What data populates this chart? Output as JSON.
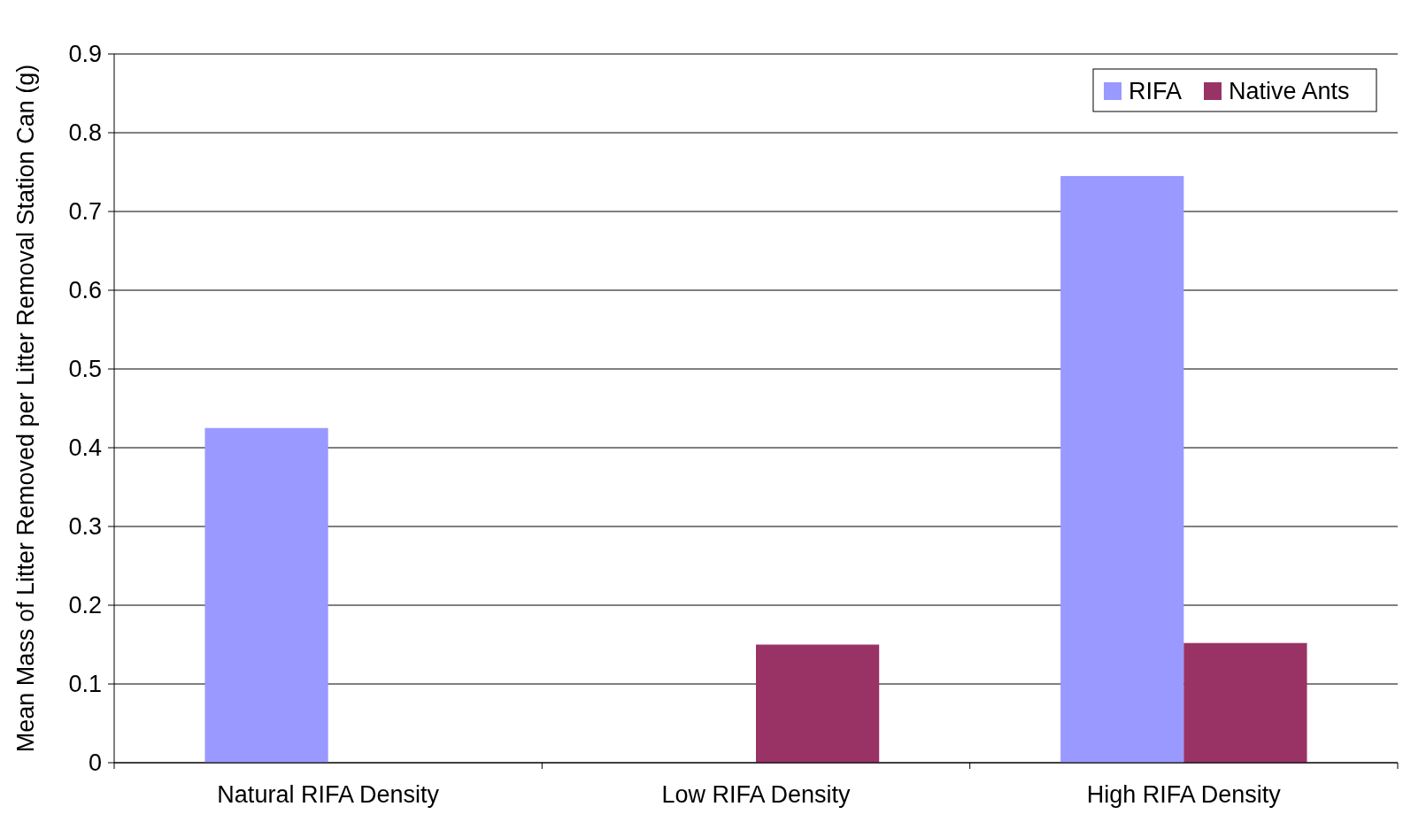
{
  "chart_data": {
    "type": "bar",
    "ylabel": "Mean Mass of Litter Removed per Litter Removal Station Can (g)",
    "categories": [
      "Natural RIFA Density",
      "Low RIFA Density",
      "High RIFA Density"
    ],
    "series": [
      {
        "name": "RIFA",
        "color": "#9999ff",
        "values": [
          0.425,
          0,
          0.745
        ]
      },
      {
        "name": "Native Ants",
        "color": "#993366",
        "values": [
          0,
          0.15,
          0.152
        ]
      }
    ],
    "ylim": [
      0,
      0.9
    ],
    "yticks": [
      0,
      0.1,
      0.2,
      0.3,
      0.4,
      0.5,
      0.6,
      0.7,
      0.8,
      0.9
    ],
    "grid": "y",
    "legend": "top right"
  }
}
